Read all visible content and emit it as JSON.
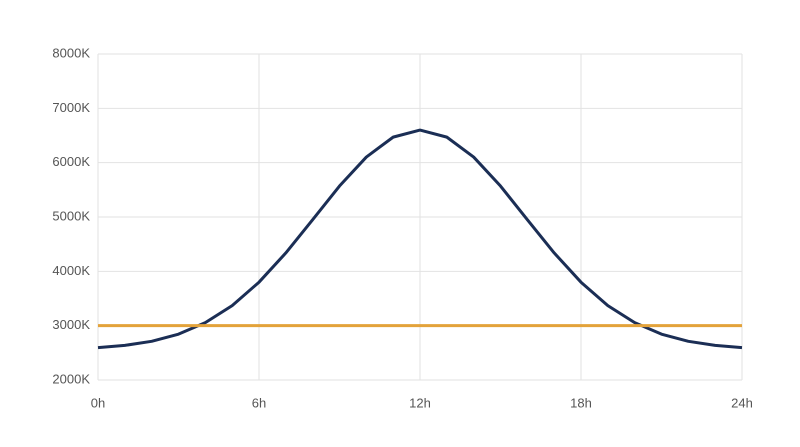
{
  "chart_data": {
    "type": "line",
    "x": [
      0,
      1,
      2,
      3,
      4,
      5,
      6,
      7,
      8,
      9,
      10,
      11,
      12,
      13,
      14,
      15,
      16,
      17,
      18,
      19,
      20,
      21,
      22,
      23,
      24
    ],
    "series": [
      {
        "color": "#1b2e55",
        "values": [
          2596,
          2637,
          2712,
          2844,
          3056,
          3369,
          3800,
          4339,
          4950,
          5570,
          6103,
          6470,
          6600,
          6470,
          6103,
          5570,
          4950,
          4339,
          3800,
          3369,
          3056,
          2844,
          2712,
          2637,
          2596
        ]
      },
      {
        "color": "#e3a23a",
        "values": [
          3000,
          3000,
          3000,
          3000,
          3000,
          3000,
          3000,
          3000,
          3000,
          3000,
          3000,
          3000,
          3000,
          3000,
          3000,
          3000,
          3000,
          3000,
          3000,
          3000,
          3000,
          3000,
          3000,
          3000,
          3000
        ]
      }
    ],
    "xlim": [
      0,
      24
    ],
    "xticks": [
      {
        "value": 0,
        "label": "0h"
      },
      {
        "value": 6,
        "label": "6h"
      },
      {
        "value": 12,
        "label": "12h"
      },
      {
        "value": 18,
        "label": "18h"
      },
      {
        "value": 24,
        "label": "24h"
      }
    ],
    "ylim": [
      2000,
      8000
    ],
    "yticks": [
      {
        "value": 2000,
        "label": "2000K"
      },
      {
        "value": 3000,
        "label": "3000K"
      },
      {
        "value": 4000,
        "label": "4000K"
      },
      {
        "value": 5000,
        "label": "5000K"
      },
      {
        "value": 6000,
        "label": "6000K"
      },
      {
        "value": 7000,
        "label": "7000K"
      },
      {
        "value": 8000,
        "label": "8000K"
      }
    ],
    "grid": true
  }
}
